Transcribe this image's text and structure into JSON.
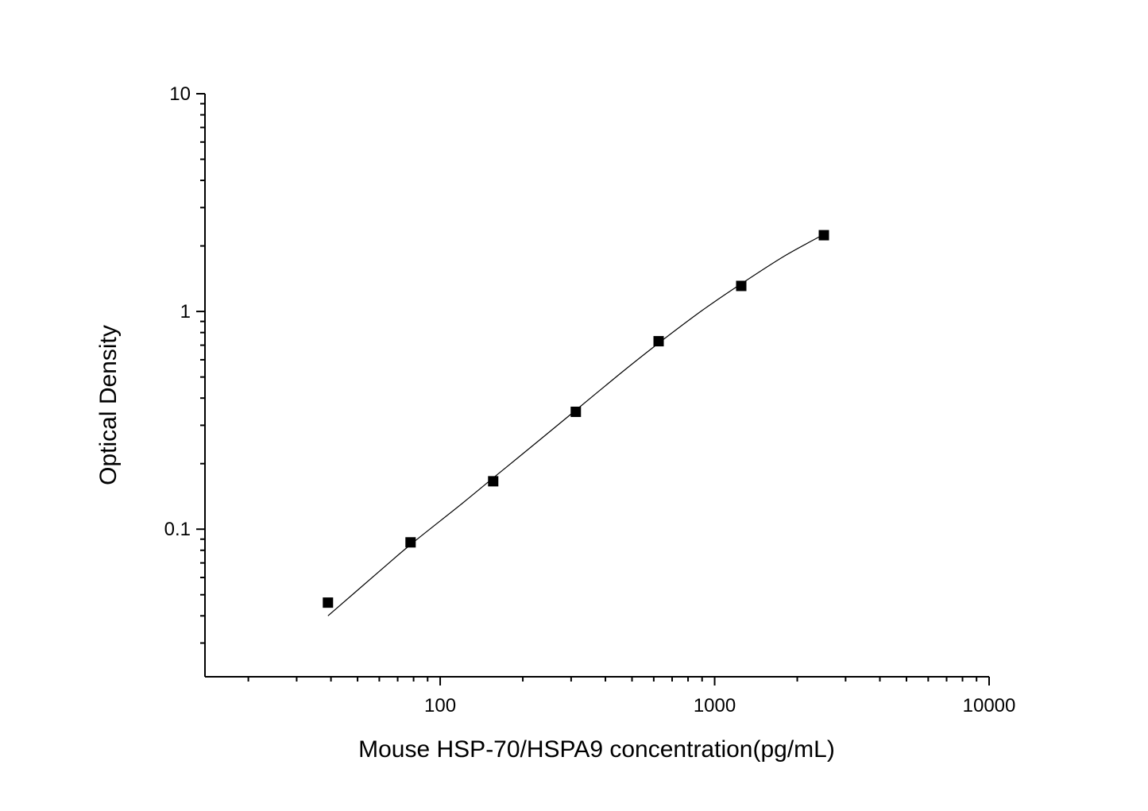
{
  "chart_data": {
    "type": "scatter",
    "title": "",
    "xlabel": "Mouse HSP-70/HSPA9 concentration(pg/mL)",
    "ylabel": "Optical Density",
    "x_scale": "log",
    "y_scale": "log",
    "xlim": [
      13.9,
      10000
    ],
    "ylim": [
      0.021,
      10
    ],
    "x_ticks": [
      {
        "value": 100,
        "label": "100"
      },
      {
        "value": 1000,
        "label": "1000"
      },
      {
        "value": 10000,
        "label": "10000"
      }
    ],
    "y_ticks": [
      {
        "value": 0.1,
        "label": "0.1"
      },
      {
        "value": 1,
        "label": "1"
      },
      {
        "value": 10,
        "label": "10"
      }
    ],
    "grid": false,
    "legend": "none",
    "series": [
      {
        "marker": "square",
        "color": "#000000",
        "points": [
          {
            "x": 39,
            "y": 0.046
          },
          {
            "x": 78,
            "y": 0.087
          },
          {
            "x": 156,
            "y": 0.166
          },
          {
            "x": 312,
            "y": 0.346
          },
          {
            "x": 625,
            "y": 0.73
          },
          {
            "x": 1250,
            "y": 1.31
          },
          {
            "x": 2500,
            "y": 2.24
          }
        ]
      }
    ],
    "fit_curve": {
      "color": "#000000",
      "points": [
        {
          "x": 39,
          "y": 0.04
        },
        {
          "x": 60,
          "y": 0.064
        },
        {
          "x": 78,
          "y": 0.085
        },
        {
          "x": 120,
          "y": 0.131
        },
        {
          "x": 156,
          "y": 0.172
        },
        {
          "x": 220,
          "y": 0.245
        },
        {
          "x": 312,
          "y": 0.352
        },
        {
          "x": 450,
          "y": 0.515
        },
        {
          "x": 625,
          "y": 0.715
        },
        {
          "x": 900,
          "y": 1.01
        },
        {
          "x": 1250,
          "y": 1.34
        },
        {
          "x": 1800,
          "y": 1.8
        },
        {
          "x": 2500,
          "y": 2.26
        }
      ]
    }
  }
}
